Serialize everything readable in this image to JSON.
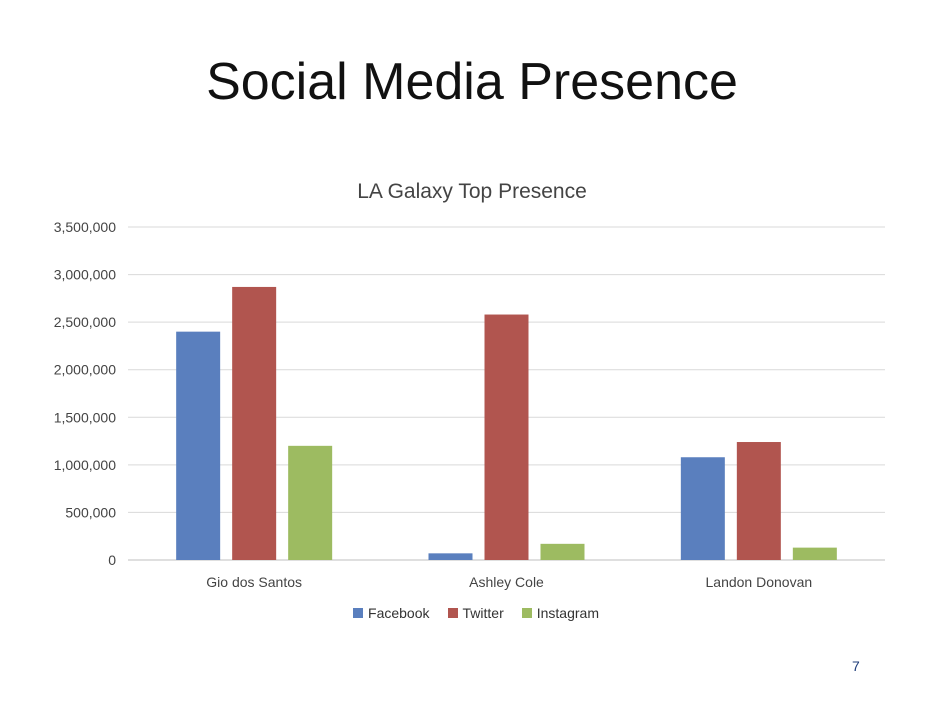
{
  "slide": {
    "title": "Social Media Presence",
    "page_number": "7"
  },
  "chart_data": {
    "type": "bar",
    "title": "LA Galaxy Top Presence",
    "categories": [
      "Gio dos Santos",
      "Ashley Cole",
      "Landon Donovan"
    ],
    "series": [
      {
        "name": "Facebook",
        "values": [
          2400000,
          70000,
          1080000
        ],
        "color": "#5a7fbe"
      },
      {
        "name": "Twitter",
        "values": [
          2870000,
          2580000,
          1240000
        ],
        "color": "#b1554f"
      },
      {
        "name": "Instagram",
        "values": [
          1200000,
          170000,
          130000
        ],
        "color": "#9dbb61"
      }
    ],
    "yticks": [
      "0",
      "500,000",
      "1,000,000",
      "1,500,000",
      "2,000,000",
      "2,500,000",
      "3,000,000",
      "3,500,000"
    ],
    "ylim": [
      0,
      3500000
    ],
    "grid": true,
    "legend_position": "bottom"
  }
}
